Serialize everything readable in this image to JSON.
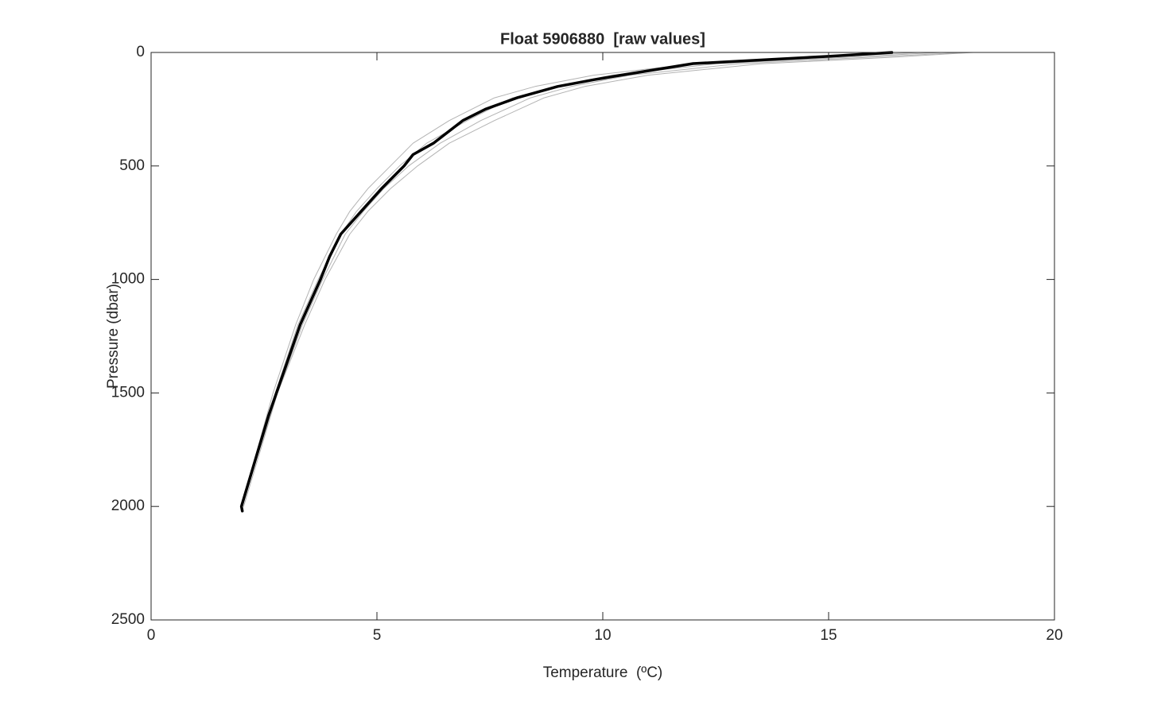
{
  "chart_data": {
    "type": "line",
    "title": "Float 5906880  [raw values]",
    "x_label": "Temperature  (ºC)",
    "y_label": "Pressure (dbar)",
    "xlim": [
      0,
      20
    ],
    "xticks": [
      0,
      5,
      10,
      15,
      20
    ],
    "ylim": [
      0,
      2500
    ],
    "yticks": [
      0,
      500,
      1000,
      1500,
      2000,
      2500
    ],
    "y_inverted": true,
    "grid": false,
    "series": [
      {
        "color": "#b3b3b3",
        "linewidth": 1,
        "x": [
          18.2,
          16.5,
          13.5,
          11.0,
          9.6,
          8.7,
          7.6,
          6.6,
          5.9,
          5.3,
          4.8,
          4.4,
          3.85,
          3.4,
          2.8,
          2.35,
          2.05
        ],
        "values": [
          0,
          20,
          50,
          100,
          150,
          200,
          300,
          400,
          500,
          600,
          700,
          800,
          1000,
          1200,
          1500,
          1800,
          2000
        ]
      },
      {
        "color": "#b3b3b3",
        "linewidth": 1,
        "x": [
          17.5,
          15.5,
          12.5,
          10.2,
          9.0,
          8.0,
          7.0,
          6.1,
          5.5,
          5.0,
          4.55,
          4.2,
          3.7,
          3.25,
          2.75,
          2.3,
          2.0
        ],
        "values": [
          0,
          20,
          50,
          100,
          150,
          200,
          300,
          400,
          500,
          600,
          700,
          800,
          1000,
          1200,
          1500,
          1800,
          2000
        ]
      },
      {
        "color": "#b3b3b3",
        "linewidth": 1,
        "x": [
          17.0,
          15.0,
          12.0,
          9.8,
          8.5,
          7.6,
          6.6,
          5.8,
          5.3,
          4.8,
          4.4,
          4.1,
          3.6,
          3.2,
          2.7,
          2.28,
          2.0
        ],
        "values": [
          0,
          20,
          50,
          100,
          150,
          200,
          300,
          400,
          500,
          600,
          700,
          800,
          1000,
          1200,
          1500,
          1800,
          2000
        ]
      },
      {
        "color": "#b3b3b3",
        "linewidth": 1,
        "x": [
          18.0,
          16.0,
          13.0,
          10.6,
          9.3,
          8.4,
          7.3,
          6.4,
          5.7,
          5.15,
          4.7,
          4.3,
          3.8,
          3.35,
          2.8,
          2.32,
          2.02
        ],
        "values": [
          0,
          20,
          50,
          100,
          150,
          200,
          300,
          400,
          500,
          600,
          700,
          800,
          1000,
          1200,
          1500,
          1800,
          2000
        ]
      },
      {
        "color": "#000000",
        "linewidth": 3.5,
        "x": [
          16.4,
          15.0,
          12.0,
          10.4,
          9.8,
          9.0,
          8.1,
          7.4,
          6.9,
          6.25,
          5.8,
          5.6,
          5.1,
          4.65,
          4.2,
          3.95,
          3.75,
          3.3,
          2.95,
          2.6,
          2.3,
          2.0,
          2.02
        ],
        "values": [
          0,
          17,
          49,
          100,
          120,
          150,
          200,
          250,
          300,
          400,
          450,
          500,
          600,
          700,
          800,
          900,
          1000,
          1200,
          1400,
          1600,
          1800,
          2000,
          2020
        ]
      }
    ]
  }
}
